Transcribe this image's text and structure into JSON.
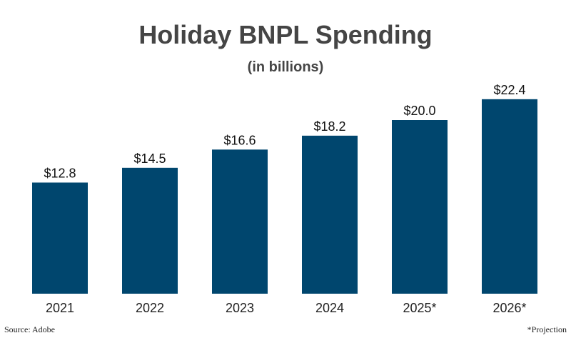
{
  "chart_data": {
    "type": "bar",
    "title": "Holiday BNPL Spending",
    "subtitle": "(in billions)",
    "categories": [
      "2021",
      "2022",
      "2023",
      "2024",
      "2025*",
      "2026*"
    ],
    "values": [
      12.8,
      14.5,
      16.6,
      18.2,
      20.0,
      22.4
    ],
    "value_labels": [
      "$12.8",
      "$14.5",
      "$16.6",
      "$18.2",
      "$20.0",
      "$22.4"
    ],
    "xlabel": "",
    "ylabel": "",
    "ylim": [
      0,
      25
    ],
    "grid": false,
    "legend": "none",
    "bar_color": "#00466e"
  },
  "footer": {
    "source": "Source: Adobe",
    "note": "*Projection"
  }
}
